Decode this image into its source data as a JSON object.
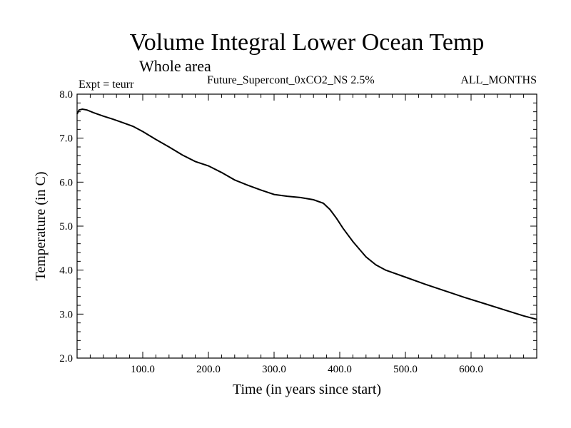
{
  "chart_data": {
    "type": "line",
    "title": "Volume Integral Lower Ocean Temp",
    "subtitle": "Whole area",
    "annotations": {
      "left": "Expt = teurr",
      "center": "Future_Supercont_0xCO2_NS 2.5%",
      "right": "ALL_MONTHS"
    },
    "xlabel": "Time (in years since start)",
    "ylabel": "Temperature (in C)",
    "xlim": [
      0,
      700
    ],
    "ylim": [
      2.0,
      8.0
    ],
    "xticks": [
      100,
      200,
      300,
      400,
      500,
      600
    ],
    "xtick_labels": [
      "100.0",
      "200.0",
      "300.0",
      "400.0",
      "500.0",
      "600.0"
    ],
    "yticks": [
      2,
      3,
      4,
      5,
      6,
      7,
      8
    ],
    "ytick_labels": [
      "2.0",
      "3.0",
      "4.0",
      "5.0",
      "6.0",
      "7.0",
      "8.0"
    ],
    "grid": false,
    "series": [
      {
        "x": [
          0,
          3,
          8,
          15,
          25,
          40,
          55,
          70,
          85,
          100,
          120,
          140,
          160,
          180,
          200,
          220,
          240,
          260,
          280,
          300,
          320,
          340,
          360,
          375,
          385,
          395,
          405,
          420,
          440,
          455,
          470,
          500,
          530,
          560,
          590,
          620,
          650,
          680,
          700
        ],
        "y": [
          7.55,
          7.64,
          7.66,
          7.64,
          7.58,
          7.5,
          7.43,
          7.35,
          7.27,
          7.15,
          6.97,
          6.8,
          6.62,
          6.47,
          6.37,
          6.22,
          6.05,
          5.93,
          5.82,
          5.72,
          5.68,
          5.65,
          5.6,
          5.52,
          5.38,
          5.18,
          4.95,
          4.65,
          4.3,
          4.12,
          4.0,
          3.84,
          3.68,
          3.53,
          3.38,
          3.24,
          3.1,
          2.96,
          2.88
        ]
      }
    ]
  }
}
